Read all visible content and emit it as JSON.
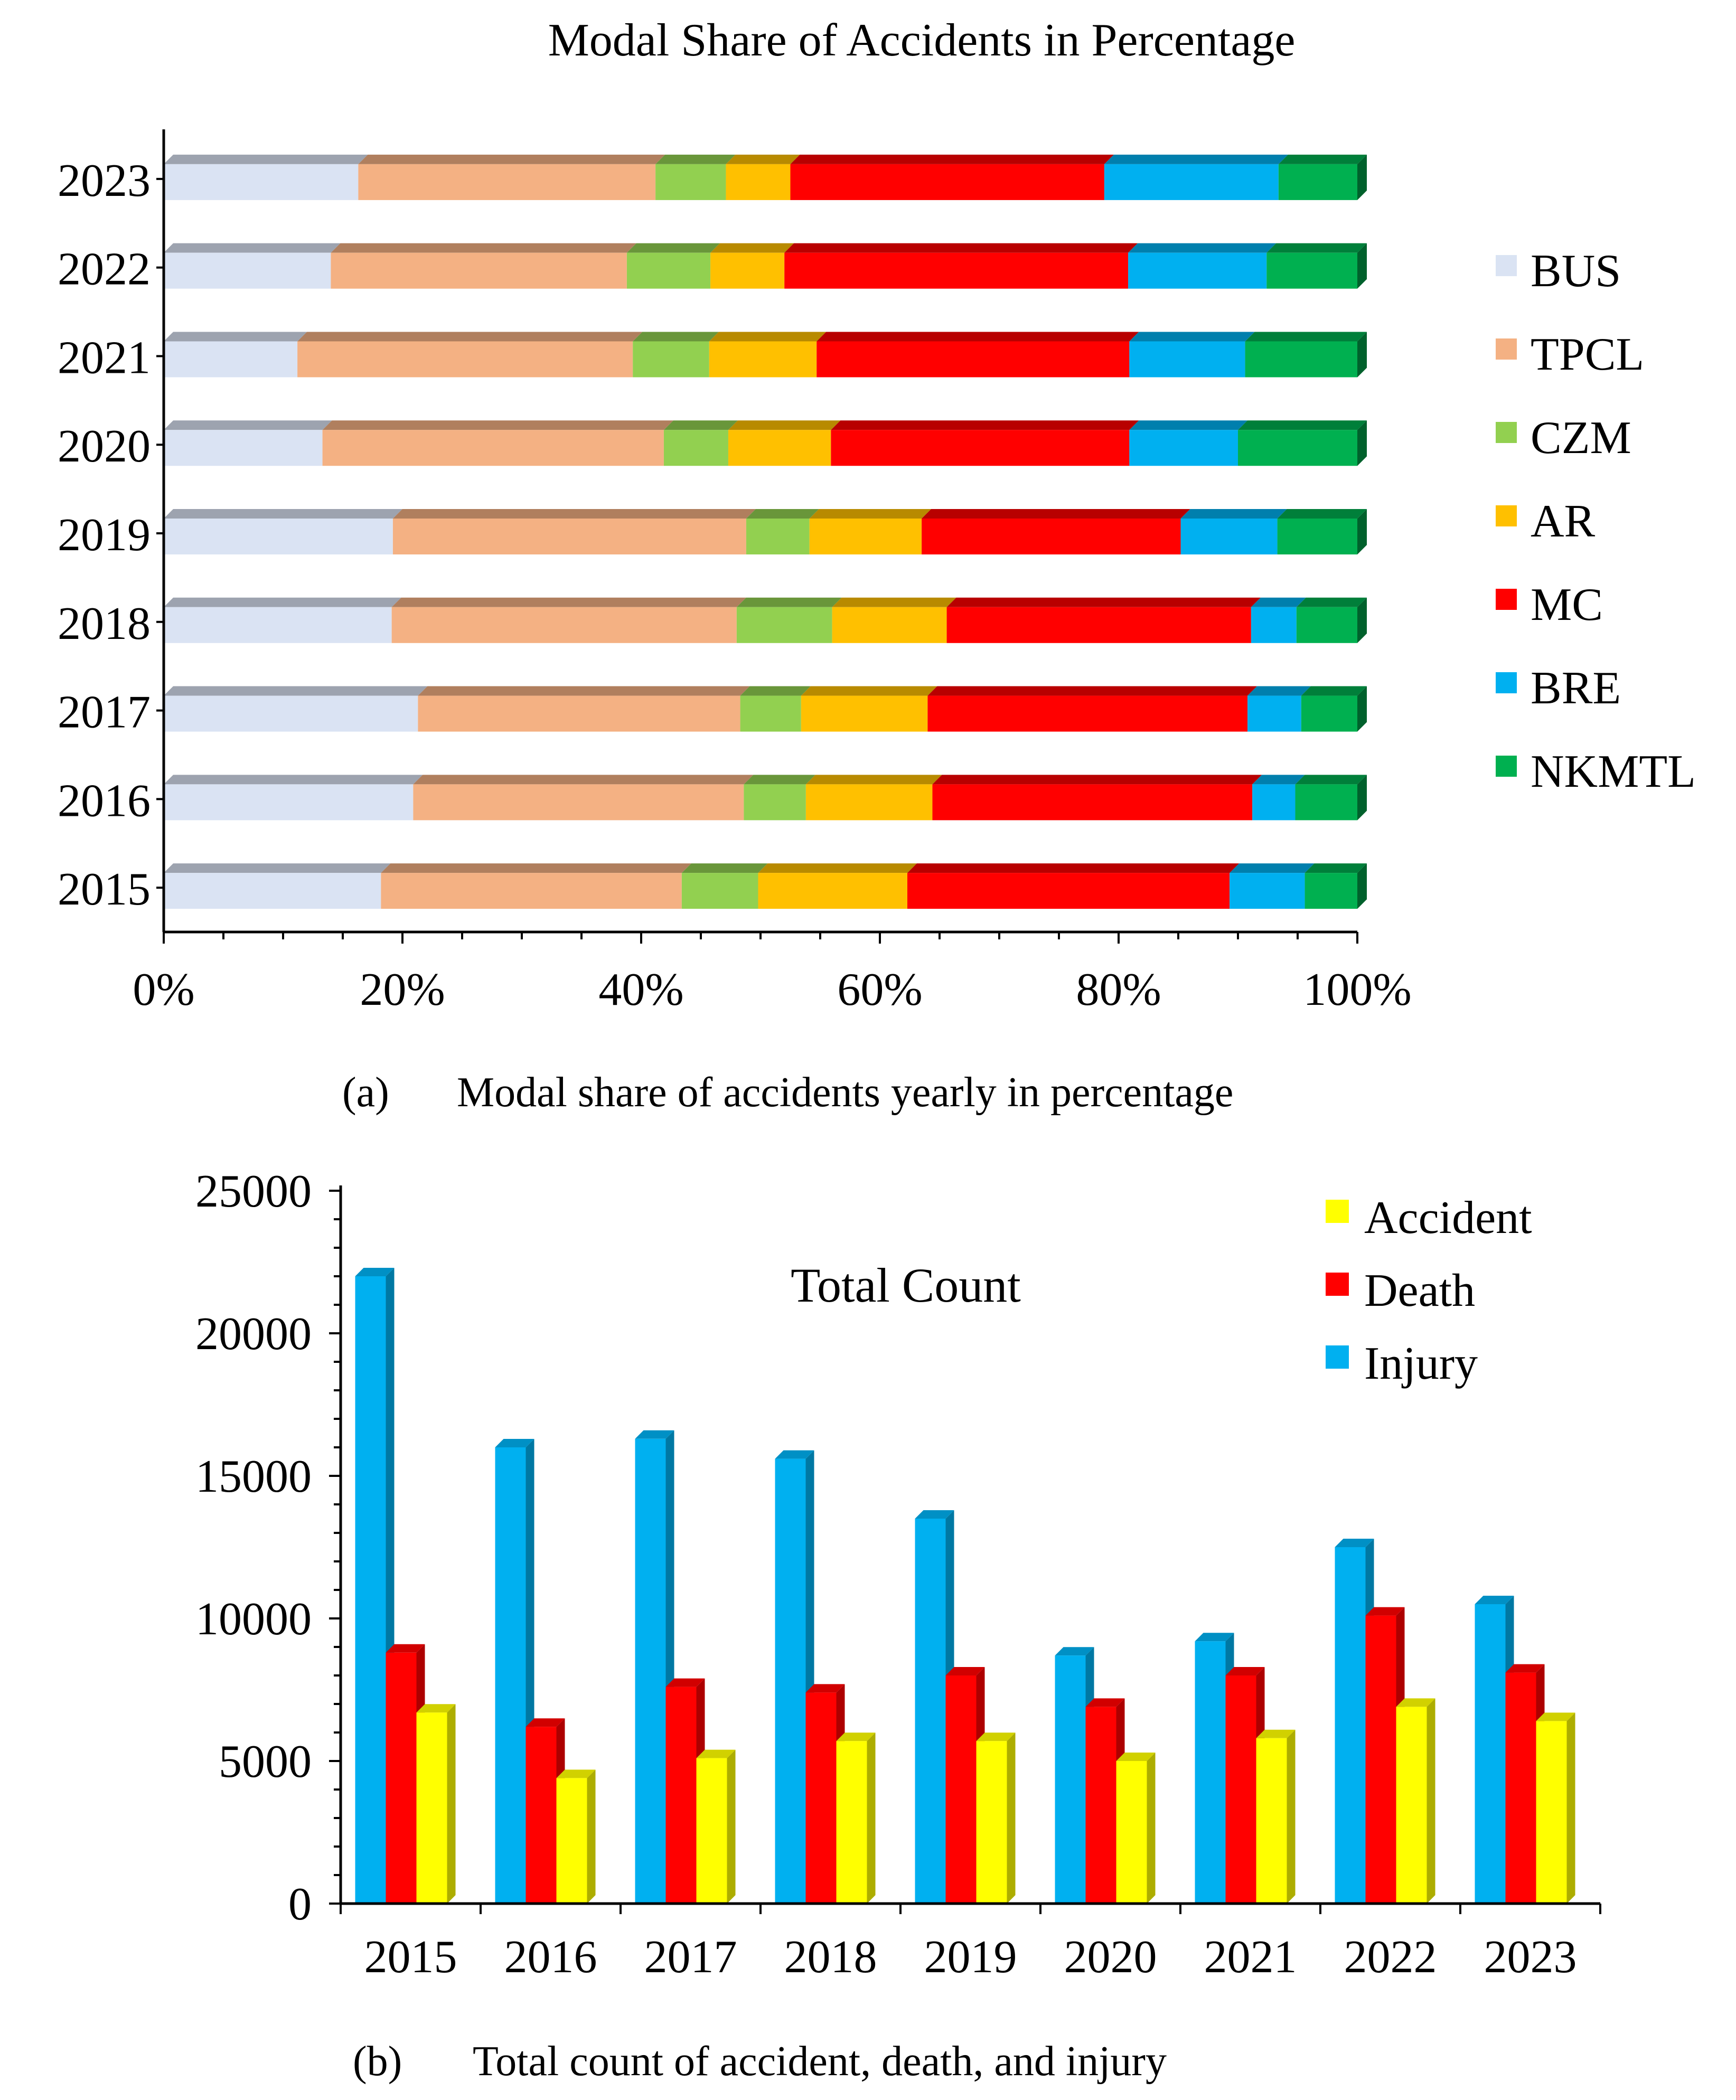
{
  "chart_data": [
    {
      "type": "bar",
      "orientation": "horizontal",
      "stacked": "percent",
      "title": "Modal Share of Accidents in Percentage",
      "caption_label": "(a)",
      "caption_text": "Modal share of accidents yearly in percentage",
      "categories": [
        "2023",
        "2022",
        "2021",
        "2020",
        "2019",
        "2018",
        "2017",
        "2016",
        "2015"
      ],
      "xlim": [
        0,
        100
      ],
      "x_ticks": [
        "0%",
        "20%",
        "40%",
        "60%",
        "80%",
        "100%"
      ],
      "legend_position": "right",
      "series": [
        {
          "name": "BUS",
          "color": "#dae3f3",
          "values": [
            16.3,
            14.0,
            11.2,
            13.3,
            19.2,
            19.1,
            21.3,
            20.9,
            18.2
          ]
        },
        {
          "name": "TPCL",
          "color": "#f4b183",
          "values": [
            24.9,
            24.8,
            28.1,
            28.6,
            29.6,
            28.9,
            27.0,
            27.7,
            25.2
          ]
        },
        {
          "name": "CZM",
          "color": "#92d050",
          "values": [
            5.9,
            7.0,
            6.4,
            5.4,
            5.3,
            8.0,
            5.1,
            5.2,
            6.4
          ]
        },
        {
          "name": "AR",
          "color": "#ffc000",
          "values": [
            5.4,
            6.2,
            9.0,
            8.6,
            9.4,
            9.6,
            10.6,
            10.6,
            12.5
          ]
        },
        {
          "name": "MC",
          "color": "#ff0000",
          "values": [
            26.3,
            28.8,
            26.2,
            25.0,
            21.7,
            25.5,
            26.8,
            26.8,
            27.0
          ]
        },
        {
          "name": "BRE",
          "color": "#00b0f0",
          "values": [
            14.6,
            11.6,
            9.7,
            9.1,
            8.1,
            3.8,
            4.5,
            3.6,
            6.3
          ]
        },
        {
          "name": "NKMTL",
          "color": "#00b050",
          "values": [
            6.6,
            7.6,
            9.4,
            10.0,
            6.7,
            5.1,
            4.7,
            5.2,
            4.4
          ]
        }
      ]
    },
    {
      "type": "bar",
      "title": "Total Count",
      "caption_label": "(b)",
      "caption_text": "Total count of accident, death, and injury",
      "categories": [
        "2015",
        "2016",
        "2017",
        "2018",
        "2019",
        "2020",
        "2021",
        "2022",
        "2023"
      ],
      "ylim": [
        0,
        25000
      ],
      "y_ticks": [
        "0",
        "5000",
        "10000",
        "15000",
        "20000",
        "25000"
      ],
      "legend_position": "top-right",
      "legend": [
        "Accident",
        "Death",
        "Injury"
      ],
      "series": [
        {
          "name": "Injury",
          "color": "#00b0f0",
          "values": [
            22000,
            16000,
            16300,
            15600,
            13500,
            8700,
            9200,
            12500,
            10500
          ]
        },
        {
          "name": "Death",
          "color": "#ff0000",
          "values": [
            8800,
            6200,
            7600,
            7400,
            8000,
            6900,
            8000,
            10100,
            8100
          ]
        },
        {
          "name": "Accident",
          "color": "#ffff00",
          "values": [
            6700,
            4400,
            5100,
            5700,
            5700,
            5000,
            5800,
            6900,
            6400
          ]
        }
      ]
    }
  ]
}
